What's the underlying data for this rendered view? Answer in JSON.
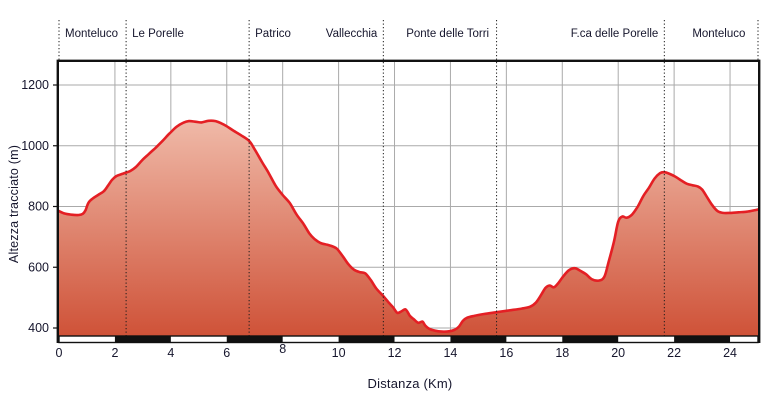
{
  "chart_data": {
    "type": "area",
    "title": "",
    "xlabel": "Distanza (Km)",
    "ylabel": "Altezza tracciato (m)",
    "xlim": [
      0,
      25
    ],
    "ylim": [
      400,
      1280
    ],
    "grid": true,
    "x_ticks": [
      "0",
      "2",
      "4",
      "6",
      "8",
      "10",
      "12",
      "14",
      "16",
      "18",
      "20",
      "22",
      "24"
    ],
    "x_tick_km": [
      0,
      2,
      4,
      6,
      8,
      10,
      12,
      14,
      16,
      18,
      20,
      22,
      24
    ],
    "y_ticks": [
      "400",
      "600",
      "800",
      "1000",
      "1200"
    ],
    "y_tick_m": [
      400,
      600,
      800,
      1000,
      1200
    ],
    "waypoints": [
      {
        "label": "Monteluco",
        "km": 0,
        "align": "left"
      },
      {
        "label": "Le Porelle",
        "km": 2.4,
        "align": "left"
      },
      {
        "label": "Patrico",
        "km": 6.8,
        "align": "left"
      },
      {
        "label": "Vallecchia",
        "km": 11.6,
        "align": "right"
      },
      {
        "label": "Ponte delle Torri",
        "km": 13.9,
        "align": "center"
      },
      {
        "label": "F.ca delle Porelle",
        "km": 21.65,
        "align": "right"
      },
      {
        "label": "Monteluco",
        "km": 23.6,
        "align": "center"
      }
    ],
    "boundaries_km": [
      0,
      2.4,
      6.8,
      11.6,
      15.65,
      21.65,
      25
    ],
    "scale_bar": {
      "start_km": 0,
      "end_km": 25,
      "interval_km": 2,
      "first_color": "#ffffff",
      "alt_color": "#111111"
    },
    "profile_km_m": [
      [
        0,
        785
      ],
      [
        0.2,
        777
      ],
      [
        0.45,
        773
      ],
      [
        0.7,
        772
      ],
      [
        0.85,
        776
      ],
      [
        0.95,
        788
      ],
      [
        1.05,
        812
      ],
      [
        1.2,
        826
      ],
      [
        1.4,
        838
      ],
      [
        1.6,
        850
      ],
      [
        1.75,
        868
      ],
      [
        1.9,
        888
      ],
      [
        2.05,
        900
      ],
      [
        2.25,
        907
      ],
      [
        2.4,
        912
      ],
      [
        2.55,
        917
      ],
      [
        2.75,
        930
      ],
      [
        3.0,
        955
      ],
      [
        3.2,
        972
      ],
      [
        3.45,
        993
      ],
      [
        3.7,
        1016
      ],
      [
        3.95,
        1040
      ],
      [
        4.2,
        1062
      ],
      [
        4.45,
        1076
      ],
      [
        4.65,
        1081
      ],
      [
        4.9,
        1079
      ],
      [
        5.1,
        1077
      ],
      [
        5.35,
        1082
      ],
      [
        5.6,
        1081
      ],
      [
        5.8,
        1074
      ],
      [
        6.0,
        1064
      ],
      [
        6.25,
        1049
      ],
      [
        6.5,
        1035
      ],
      [
        6.8,
        1016
      ],
      [
        7.0,
        988
      ],
      [
        7.25,
        948
      ],
      [
        7.5,
        910
      ],
      [
        7.75,
        868
      ],
      [
        8.0,
        838
      ],
      [
        8.25,
        812
      ],
      [
        8.5,
        773
      ],
      [
        8.75,
        742
      ],
      [
        8.95,
        712
      ],
      [
        9.15,
        692
      ],
      [
        9.35,
        680
      ],
      [
        9.6,
        674
      ],
      [
        9.8,
        668
      ],
      [
        9.95,
        660
      ],
      [
        10.15,
        636
      ],
      [
        10.35,
        610
      ],
      [
        10.55,
        592
      ],
      [
        10.75,
        584
      ],
      [
        10.95,
        580
      ],
      [
        11.15,
        558
      ],
      [
        11.35,
        530
      ],
      [
        11.6,
        505
      ],
      [
        11.8,
        483
      ],
      [
        11.95,
        468
      ],
      [
        12.1,
        450
      ],
      [
        12.25,
        455
      ],
      [
        12.4,
        461
      ],
      [
        12.55,
        440
      ],
      [
        12.7,
        428
      ],
      [
        12.85,
        417
      ],
      [
        13.0,
        421
      ],
      [
        13.1,
        408
      ],
      [
        13.25,
        397
      ],
      [
        13.45,
        391
      ],
      [
        13.7,
        388
      ],
      [
        13.95,
        389
      ],
      [
        14.15,
        394
      ],
      [
        14.3,
        404
      ],
      [
        14.45,
        424
      ],
      [
        14.6,
        434
      ],
      [
        14.85,
        440
      ],
      [
        15.2,
        446
      ],
      [
        15.65,
        452
      ],
      [
        16.1,
        458
      ],
      [
        16.55,
        464
      ],
      [
        16.85,
        470
      ],
      [
        17.05,
        483
      ],
      [
        17.25,
        510
      ],
      [
        17.4,
        532
      ],
      [
        17.55,
        540
      ],
      [
        17.7,
        534
      ],
      [
        17.85,
        547
      ],
      [
        18.05,
        572
      ],
      [
        18.25,
        591
      ],
      [
        18.45,
        597
      ],
      [
        18.65,
        588
      ],
      [
        18.85,
        577
      ],
      [
        19.05,
        561
      ],
      [
        19.3,
        556
      ],
      [
        19.5,
        568
      ],
      [
        19.65,
        615
      ],
      [
        19.85,
        685
      ],
      [
        20.0,
        750
      ],
      [
        20.15,
        767
      ],
      [
        20.3,
        763
      ],
      [
        20.5,
        774
      ],
      [
        20.7,
        800
      ],
      [
        20.9,
        835
      ],
      [
        21.1,
        862
      ],
      [
        21.3,
        892
      ],
      [
        21.5,
        910
      ],
      [
        21.65,
        913
      ],
      [
        21.85,
        907
      ],
      [
        22.05,
        898
      ],
      [
        22.25,
        886
      ],
      [
        22.45,
        875
      ],
      [
        22.65,
        870
      ],
      [
        22.85,
        866
      ],
      [
        23.0,
        856
      ],
      [
        23.15,
        835
      ],
      [
        23.35,
        806
      ],
      [
        23.55,
        785
      ],
      [
        23.75,
        779
      ],
      [
        24.0,
        779
      ],
      [
        24.3,
        781
      ],
      [
        24.6,
        783
      ],
      [
        24.85,
        787
      ],
      [
        25.0,
        790
      ]
    ],
    "colors": {
      "line": "#e41f24",
      "fill_top": "#f5cbbb",
      "fill_bottom": "#cf5238",
      "grid": "#aaaaaa",
      "boundary_line": "#1c1c1c",
      "text": "#16162d",
      "border": "#111111"
    }
  }
}
